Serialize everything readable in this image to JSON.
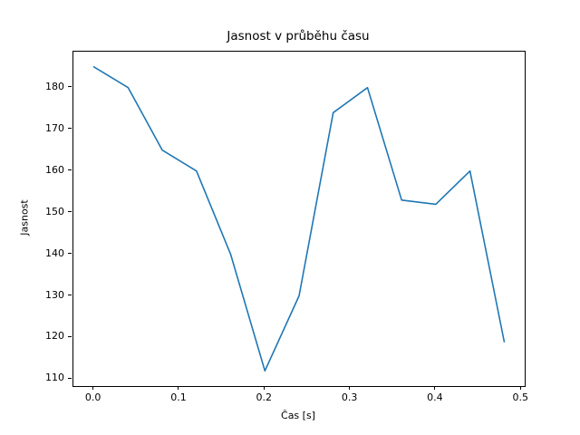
{
  "chart_data": {
    "type": "line",
    "title": "Jasnost v průběhu času",
    "xlabel": "Čas [s]",
    "ylabel": "Jasnost",
    "x": [
      0.0,
      0.04,
      0.08,
      0.12,
      0.16,
      0.2,
      0.24,
      0.28,
      0.32,
      0.36,
      0.4,
      0.44,
      0.48
    ],
    "values": [
      185,
      180,
      165,
      160,
      140,
      112,
      130,
      174,
      180,
      153,
      152,
      160,
      119
    ],
    "xlim": [
      -0.024,
      0.504
    ],
    "ylim": [
      108.35,
      188.65
    ],
    "x_ticks": {
      "positions": [
        0.0,
        0.1,
        0.2,
        0.3,
        0.4,
        0.5
      ],
      "labels": [
        "0.0",
        "0.1",
        "0.2",
        "0.3",
        "0.4",
        "0.5"
      ]
    },
    "y_ticks": {
      "positions": [
        110,
        120,
        130,
        140,
        150,
        160,
        170,
        180
      ],
      "labels": [
        "110",
        "120",
        "130",
        "140",
        "150",
        "160",
        "170",
        "180"
      ]
    },
    "line_color": "#1f77b4",
    "text_color": "#000000",
    "background_color": "#ffffff",
    "grid": false,
    "legend": null
  }
}
